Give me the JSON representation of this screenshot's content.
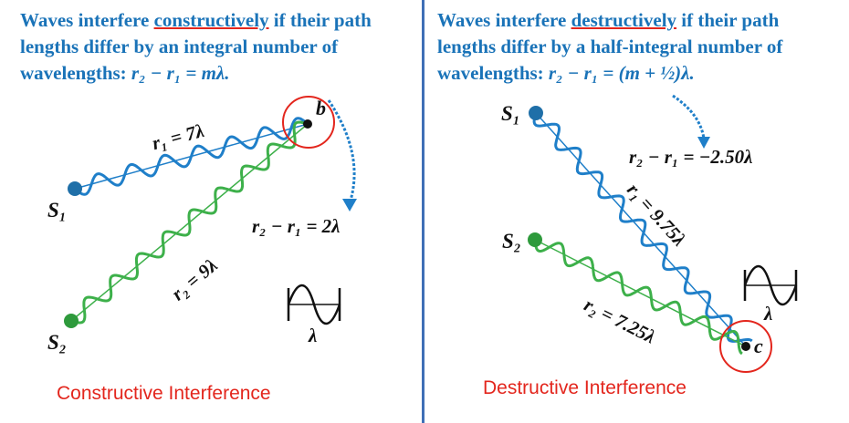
{
  "left": {
    "headline": {
      "line1_pre": "Waves interfere ",
      "line1_emph": "constructively",
      "line1_post": " if their path",
      "line2": "lengths differ by an integral number of",
      "line3_pre": "wavelengths:  ",
      "line3_formula": "r₂ − r₁ = mλ."
    },
    "point_label": "b",
    "source1": "S₁",
    "source2": "S₂",
    "r1_label": "r₁ = 7λ",
    "r2_label": "r₂ = 9λ",
    "difference": "r₂ − r₁ = 2λ",
    "wavelength_symbol": "λ",
    "caption": "Constructive Interference"
  },
  "right": {
    "headline": {
      "line1_pre": "Waves interfere ",
      "line1_emph": "destructively",
      "line1_post": " if their path",
      "line2": "lengths differ by a half-integral number of",
      "line3_pre": "wavelengths:  ",
      "line3_formula": "r₂ − r₁ = (m + ½)λ."
    },
    "point_label": "c",
    "source1": "S₁",
    "source2": "S₂",
    "r1_label": "r₁ = 9.75λ",
    "r2_label": "r₂ = 7.25λ",
    "difference": "r₂ − r₁ = −2.50λ",
    "wavelength_symbol": "λ",
    "caption": "Destructive Interference"
  },
  "colors": {
    "wave1": "#1f7fc9",
    "wave2": "#3db04a",
    "headline": "#1a73b8",
    "highlight": "#e3261d",
    "divider": "#3f6fb6"
  }
}
